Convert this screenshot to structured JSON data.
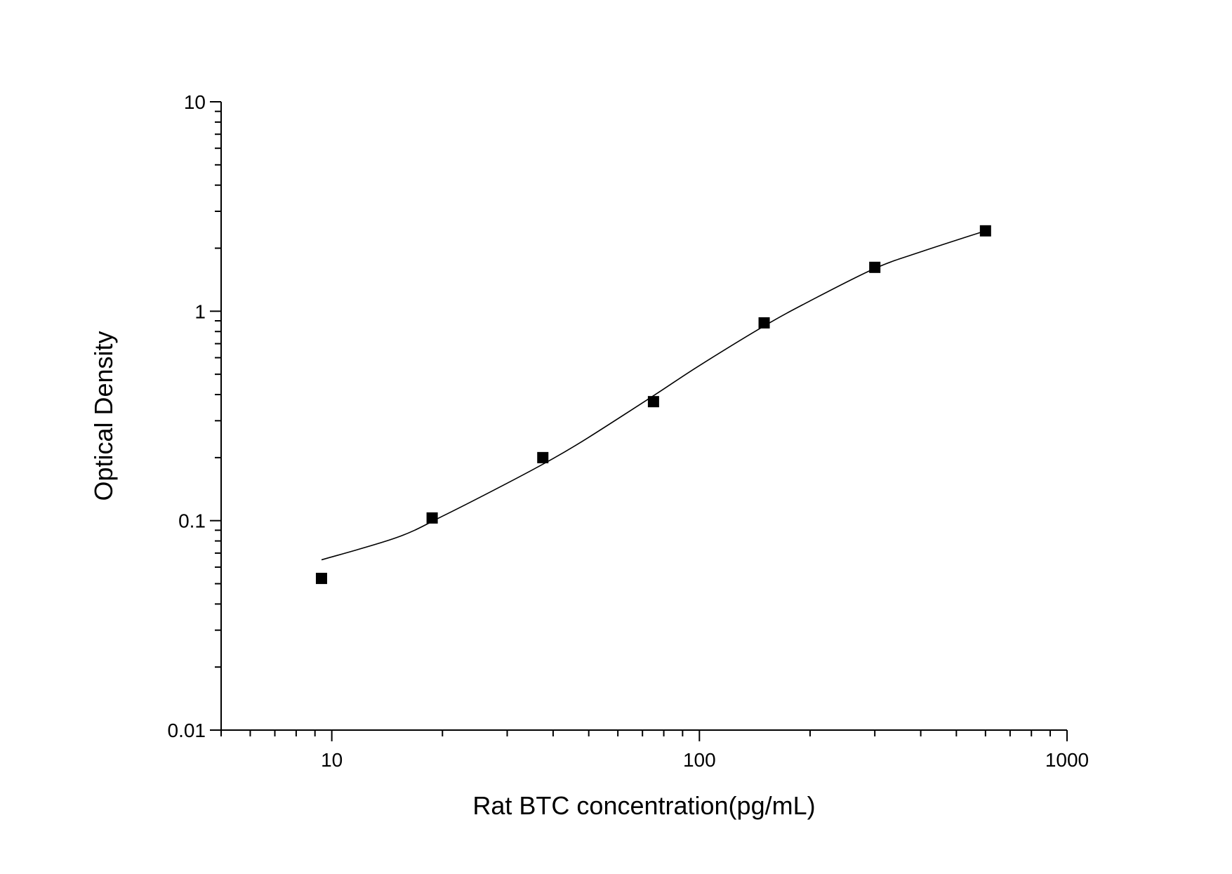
{
  "chart_data": {
    "type": "scatter",
    "title": "",
    "xlabel": "Rat BTC concentration(pg/mL)",
    "ylabel": "Optical Density",
    "xscale": "log",
    "yscale": "log",
    "xlim": [
      5,
      1000
    ],
    "ylim": [
      0.01,
      10
    ],
    "x_ticks": [
      10,
      100,
      1000
    ],
    "x_tick_labels": [
      "10",
      "100",
      "1000"
    ],
    "y_ticks": [
      0.01,
      0.1,
      1,
      10
    ],
    "y_tick_labels": [
      "0.01",
      "0.1",
      "1",
      "10"
    ],
    "grid": false,
    "legend": "none",
    "series": [
      {
        "marker": "square",
        "color": "#000000",
        "x": [
          9.375,
          18.75,
          37.5,
          75,
          150,
          300,
          600
        ],
        "y": [
          0.053,
          0.103,
          0.2,
          0.37,
          0.88,
          1.62,
          2.42
        ]
      }
    ],
    "fit_curve": {
      "color": "#000000",
      "x": [
        9.375,
        15,
        20,
        30,
        40,
        50,
        75,
        100,
        150,
        200,
        300,
        400,
        600
      ],
      "y": [
        0.065,
        0.083,
        0.105,
        0.151,
        0.198,
        0.25,
        0.395,
        0.55,
        0.85,
        1.12,
        1.6,
        1.92,
        2.42
      ]
    }
  }
}
